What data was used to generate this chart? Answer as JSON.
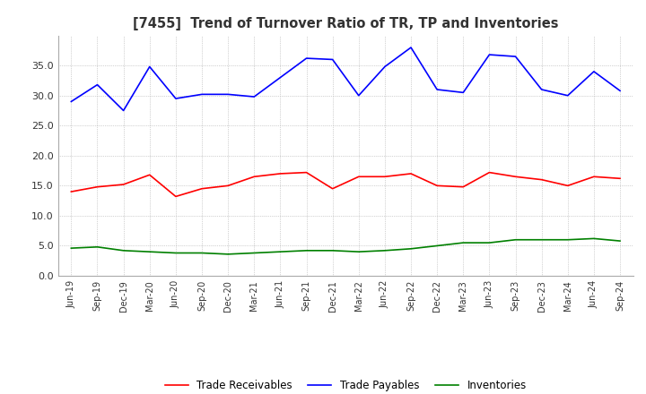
{
  "title": "[7455]  Trend of Turnover Ratio of TR, TP and Inventories",
  "x_labels": [
    "Jun-19",
    "Sep-19",
    "Dec-19",
    "Mar-20",
    "Jun-20",
    "Sep-20",
    "Dec-20",
    "Mar-21",
    "Jun-21",
    "Sep-21",
    "Dec-21",
    "Mar-22",
    "Jun-22",
    "Sep-22",
    "Dec-22",
    "Mar-23",
    "Jun-23",
    "Sep-23",
    "Dec-23",
    "Mar-24",
    "Jun-24",
    "Sep-24"
  ],
  "trade_receivables": [
    14.0,
    14.8,
    15.2,
    16.8,
    13.2,
    14.5,
    15.0,
    16.5,
    17.0,
    17.2,
    14.5,
    16.5,
    16.5,
    17.0,
    15.0,
    14.8,
    17.2,
    16.5,
    16.0,
    15.0,
    16.5,
    16.2
  ],
  "trade_payables": [
    29.0,
    31.8,
    27.5,
    34.8,
    29.5,
    30.2,
    30.2,
    29.8,
    33.0,
    36.2,
    36.0,
    30.0,
    34.8,
    38.0,
    31.0,
    30.5,
    36.8,
    36.5,
    31.0,
    30.0,
    34.0,
    30.8
  ],
  "inventories": [
    4.6,
    4.8,
    4.2,
    4.0,
    3.8,
    3.8,
    3.6,
    3.8,
    4.0,
    4.2,
    4.2,
    4.0,
    4.2,
    4.5,
    5.0,
    5.5,
    5.5,
    6.0,
    6.0,
    6.0,
    6.2,
    5.8
  ],
  "tr_color": "#ff0000",
  "tp_color": "#0000ff",
  "inv_color": "#008000",
  "ylim": [
    0,
    40
  ],
  "yticks": [
    0.0,
    5.0,
    10.0,
    15.0,
    20.0,
    25.0,
    30.0,
    35.0
  ],
  "grid_color": "#aaaaaa",
  "background_color": "#ffffff",
  "legend_labels": [
    "Trade Receivables",
    "Trade Payables",
    "Inventories"
  ]
}
